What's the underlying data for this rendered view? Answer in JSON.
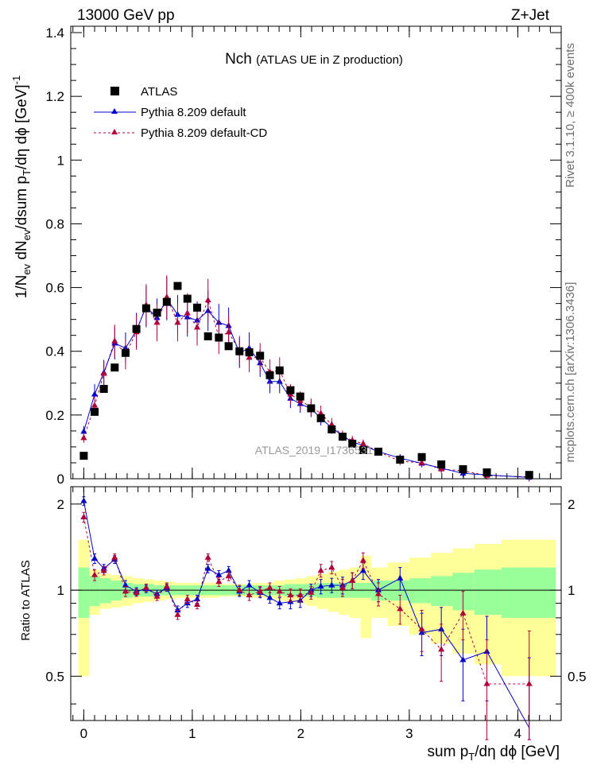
{
  "header": {
    "left": "13000 GeV pp",
    "right": "Z+Jet"
  },
  "side_text": {
    "rivet": "Rivet 3.1.10, ≥ 400k events",
    "mcplots": "mcplots.cern.ch [arXiv:1306.3436]"
  },
  "chart_data": {
    "type": "scatter",
    "title": "Nch",
    "subtitle": "(ATLAS UE in Z production)",
    "watermark": "ATLAS_2019_I1736531",
    "ylabel_main": "1/N_ev dN_ev/dsum p_T/dη dφ [GeV]^-1",
    "ylabel_ratio": "Ratio to ATLAS",
    "xlabel": "sum p_T/dη dφ [GeV]",
    "xlim": [
      -0.12,
      4.4
    ],
    "ylim_main": [
      0,
      1.42
    ],
    "ylim_ratio": [
      0.35,
      2.3
    ],
    "xticks": [
      "0",
      "1",
      "2",
      "3",
      "4"
    ],
    "yticks_main": [
      "0",
      "0.2",
      "0.4",
      "0.6",
      "0.8",
      "1",
      "1.2",
      "1.4"
    ],
    "yticks_ratio": [
      "0.5",
      "1",
      "2"
    ],
    "legend": {
      "placement": "top-left",
      "entries": [
        "ATLAS",
        "Pythia 8.209 default",
        "Pythia 8.209 default-CD"
      ]
    },
    "colors": {
      "atlas": "#000000",
      "default": "#0000cc",
      "cd": "#b0003a",
      "band_inner": "#99ff99",
      "band_outer": "#ffff99"
    },
    "series": [
      {
        "name": "ATLAS",
        "x": [
          0.0,
          0.1,
          0.185,
          0.285,
          0.385,
          0.485,
          0.575,
          0.675,
          0.765,
          0.865,
          0.955,
          1.045,
          1.145,
          1.245,
          1.335,
          1.435,
          1.525,
          1.625,
          1.715,
          1.805,
          1.905,
          1.995,
          2.095,
          2.185,
          2.285,
          2.385,
          2.475,
          2.575,
          2.715,
          2.915,
          3.115,
          3.295,
          3.495,
          3.715,
          4.105
        ],
        "values": [
          0.072,
          0.21,
          0.282,
          0.349,
          0.395,
          0.47,
          0.535,
          0.521,
          0.555,
          0.605,
          0.565,
          0.537,
          0.447,
          0.443,
          0.416,
          0.4,
          0.397,
          0.386,
          0.325,
          0.34,
          0.278,
          0.258,
          0.221,
          0.19,
          0.155,
          0.132,
          0.11,
          0.09,
          0.085,
          0.06,
          0.068,
          0.045,
          0.03,
          0.02,
          0.012
        ]
      },
      {
        "name": "Pythia 8.209 default",
        "x": [
          0.0,
          0.1,
          0.185,
          0.285,
          0.385,
          0.485,
          0.575,
          0.675,
          0.765,
          0.865,
          0.955,
          1.045,
          1.145,
          1.245,
          1.335,
          1.435,
          1.525,
          1.625,
          1.715,
          1.805,
          1.905,
          1.995,
          2.095,
          2.185,
          2.285,
          2.385,
          2.475,
          2.575,
          2.715,
          2.915,
          3.115,
          3.295,
          3.495,
          3.715,
          4.105
        ],
        "values": [
          0.148,
          0.265,
          0.333,
          0.425,
          0.41,
          0.465,
          0.54,
          0.505,
          0.565,
          0.515,
          0.507,
          0.497,
          0.527,
          0.49,
          0.48,
          0.395,
          0.41,
          0.363,
          0.305,
          0.305,
          0.252,
          0.235,
          0.22,
          0.19,
          0.16,
          0.135,
          0.115,
          0.105,
          0.085,
          0.065,
          0.048,
          0.033,
          0.017,
          0.012,
          0.004
        ],
        "ratio": [
          2.05,
          1.29,
          1.19,
          1.28,
          1.04,
          0.99,
          1.01,
          0.97,
          1.02,
          0.85,
          0.9,
          0.93,
          1.19,
          1.13,
          1.17,
          0.99,
          1.04,
          0.98,
          0.94,
          0.9,
          0.91,
          0.92,
          1.0,
          1.03,
          1.04,
          1.04,
          1.08,
          1.17,
          1.0,
          1.1,
          0.71,
          0.73,
          0.57,
          0.61,
          0.33
        ],
        "ratio_err": [
          0.07,
          0.05,
          0.04,
          0.04,
          0.04,
          0.03,
          0.03,
          0.03,
          0.03,
          0.03,
          0.03,
          0.03,
          0.04,
          0.04,
          0.04,
          0.04,
          0.04,
          0.04,
          0.04,
          0.04,
          0.05,
          0.05,
          0.05,
          0.06,
          0.06,
          0.07,
          0.07,
          0.08,
          0.09,
          0.1,
          0.12,
          0.14,
          0.16,
          0.2,
          0.25
        ]
      },
      {
        "name": "Pythia 8.209 default-CD",
        "x": [
          0.0,
          0.1,
          0.185,
          0.285,
          0.385,
          0.485,
          0.575,
          0.675,
          0.765,
          0.865,
          0.955,
          1.045,
          1.145,
          1.245,
          1.335,
          1.435,
          1.525,
          1.625,
          1.715,
          1.805,
          1.905,
          1.995,
          2.095,
          2.185,
          2.285,
          2.385,
          2.475,
          2.575,
          2.715,
          2.915,
          3.115,
          3.295,
          3.495,
          3.715,
          4.105
        ],
        "values": [
          0.128,
          0.23,
          0.33,
          0.432,
          0.39,
          0.46,
          0.545,
          0.49,
          0.57,
          0.49,
          0.52,
          0.475,
          0.56,
          0.445,
          0.46,
          0.4,
          0.38,
          0.38,
          0.335,
          0.34,
          0.265,
          0.245,
          0.225,
          0.205,
          0.17,
          0.135,
          0.12,
          0.11,
          0.085,
          0.055,
          0.05,
          0.03,
          0.025,
          0.01,
          0.006
        ],
        "ratio": [
          1.8,
          1.13,
          1.17,
          1.3,
          0.99,
          0.98,
          1.02,
          0.95,
          1.03,
          0.82,
          0.93,
          0.89,
          1.3,
          1.07,
          1.12,
          1.0,
          0.96,
          0.99,
          1.02,
          0.99,
          0.96,
          0.96,
          0.98,
          1.17,
          1.2,
          1.02,
          1.08,
          1.27,
          0.97,
          0.86,
          0.73,
          0.62,
          0.83,
          0.47,
          0.47
        ],
        "ratio_err": [
          0.07,
          0.05,
          0.04,
          0.04,
          0.04,
          0.03,
          0.03,
          0.03,
          0.03,
          0.03,
          0.03,
          0.03,
          0.04,
          0.04,
          0.04,
          0.04,
          0.04,
          0.04,
          0.04,
          0.04,
          0.05,
          0.05,
          0.05,
          0.06,
          0.06,
          0.07,
          0.07,
          0.08,
          0.09,
          0.1,
          0.12,
          0.14,
          0.16,
          0.2,
          0.25
        ]
      }
    ],
    "uncertainty_band": {
      "edges": [
        -0.05,
        0.05,
        0.15,
        0.25,
        0.35,
        0.45,
        0.55,
        0.65,
        0.75,
        0.85,
        0.95,
        1.05,
        1.15,
        1.25,
        1.35,
        1.45,
        1.55,
        1.65,
        1.75,
        1.85,
        1.95,
        2.05,
        2.15,
        2.25,
        2.35,
        2.45,
        2.55,
        2.65,
        2.8,
        3.0,
        3.2,
        3.4,
        3.6,
        3.85,
        4.35
      ],
      "inner": [
        0.2,
        0.12,
        0.1,
        0.08,
        0.06,
        0.05,
        0.05,
        0.04,
        0.04,
        0.04,
        0.04,
        0.04,
        0.04,
        0.04,
        0.04,
        0.04,
        0.04,
        0.04,
        0.04,
        0.05,
        0.05,
        0.05,
        0.06,
        0.06,
        0.06,
        0.06,
        0.06,
        0.08,
        0.08,
        0.1,
        0.12,
        0.15,
        0.18,
        0.2
      ],
      "outer": [
        0.5,
        0.18,
        0.14,
        0.13,
        0.12,
        0.1,
        0.09,
        0.08,
        0.07,
        0.06,
        0.06,
        0.06,
        0.06,
        0.05,
        0.05,
        0.05,
        0.06,
        0.06,
        0.08,
        0.09,
        0.1,
        0.12,
        0.14,
        0.16,
        0.18,
        0.2,
        0.32,
        0.2,
        0.25,
        0.3,
        0.35,
        0.4,
        0.45,
        0.5
      ]
    }
  }
}
